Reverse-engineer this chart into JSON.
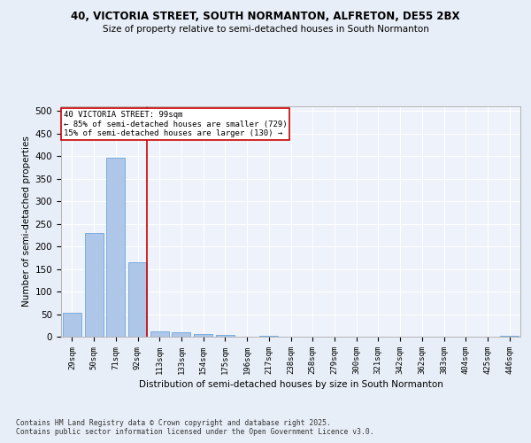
{
  "title1": "40, VICTORIA STREET, SOUTH NORMANTON, ALFRETON, DE55 2BX",
  "title2": "Size of property relative to semi-detached houses in South Normanton",
  "xlabel": "Distribution of semi-detached houses by size in South Normanton",
  "ylabel": "Number of semi-detached properties",
  "categories": [
    "29sqm",
    "50sqm",
    "71sqm",
    "92sqm",
    "113sqm",
    "133sqm",
    "154sqm",
    "175sqm",
    "196sqm",
    "217sqm",
    "238sqm",
    "258sqm",
    "279sqm",
    "300sqm",
    "321sqm",
    "342sqm",
    "362sqm",
    "383sqm",
    "404sqm",
    "425sqm",
    "446sqm"
  ],
  "values": [
    53,
    230,
    396,
    165,
    12,
    9,
    6,
    4,
    0,
    1,
    0,
    0,
    0,
    0,
    0,
    0,
    0,
    0,
    0,
    0,
    1
  ],
  "bar_color": "#aec6e8",
  "bar_edge_color": "#5b9bd5",
  "vline_x": 3,
  "vline_color": "#cc0000",
  "annotation_text": "40 VICTORIA STREET: 99sqm\n← 85% of semi-detached houses are smaller (729)\n15% of semi-detached houses are larger (130) →",
  "annotation_box_color": "#ffffff",
  "annotation_box_edge": "#cc0000",
  "ylim": [
    0,
    510
  ],
  "yticks": [
    0,
    50,
    100,
    150,
    200,
    250,
    300,
    350,
    400,
    450,
    500
  ],
  "bg_color": "#e8eef7",
  "plot_bg_color": "#eef2fa",
  "grid_color": "#ffffff",
  "footer1": "Contains HM Land Registry data © Crown copyright and database right 2025.",
  "footer2": "Contains public sector information licensed under the Open Government Licence v3.0."
}
